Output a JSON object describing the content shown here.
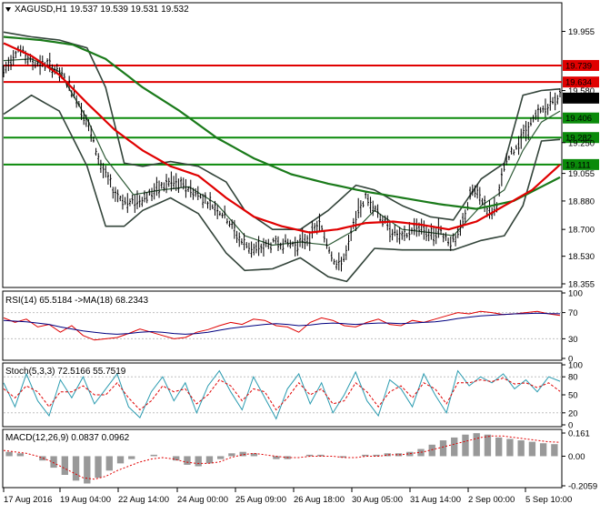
{
  "main_header": {
    "symbol_timeframe": "XAGUSD,H1",
    "ohlc": "19.537 19.539 19.531 19.532"
  },
  "rsi_header": "RSI(14) 65.5184 ->MA(18) 68.2343",
  "stoch_header": "Stoch(5,3,3) 72.5166 55.7519",
  "macd_header": "MACD(12,26,9) 0.0837 0.0962",
  "colors": {
    "candles": "#000000",
    "sma_red": "#e00000",
    "sma_green": "#1a7a1a",
    "bollinger": "#33443a",
    "fast_ma": "#2e5a36",
    "hline_red": "#e00000",
    "hline_green": "#0a8a0a",
    "rsi_line": "#e00000",
    "rsi_ma": "#000080",
    "stoch_main": "#2a9bb0",
    "stoch_signal": "#e00000",
    "macd_hist": "#999999",
    "macd_signal": "#e00000",
    "price_tag_bg": "#000000"
  },
  "chart_data": [
    {
      "type": "candlestick",
      "title": "XAGUSD,H1",
      "ylim": [
        18.355,
        20.05
      ],
      "price_ticks": [
        "19.955",
        "19.580",
        "19.250",
        "19.055",
        "18.880",
        "18.700",
        "18.530",
        "18.355"
      ],
      "x_tick_labels": [
        "17 Aug 2016",
        "19 Aug 04:00",
        "22 Aug 14:00",
        "24 Aug 00:00",
        "25 Aug 09:00",
        "26 Aug 18:00",
        "30 Aug 05:00",
        "31 Aug 14:00",
        "2 Sep 00:00",
        "5 Sep 10:00"
      ],
      "horizontal_levels": [
        {
          "value": 19.739,
          "label": "19.739",
          "color": "red"
        },
        {
          "value": 19.634,
          "label": "19.634",
          "color": "red"
        },
        {
          "value": 19.406,
          "label": "19.406",
          "color": "green"
        },
        {
          "value": 19.282,
          "label": "19.282",
          "color": "green"
        },
        {
          "value": 19.111,
          "label": "19.111",
          "color": "green"
        }
      ],
      "current_price": {
        "value": 19.532,
        "label": "19.532"
      },
      "price_path": [
        [
          0,
          19.7
        ],
        [
          3,
          19.85
        ],
        [
          6,
          19.76
        ],
        [
          10,
          19.74
        ],
        [
          13,
          19.66
        ],
        [
          16,
          19.52
        ],
        [
          18,
          19.38
        ],
        [
          21,
          19.1
        ],
        [
          24,
          18.93
        ],
        [
          27,
          18.86
        ],
        [
          30,
          18.9
        ],
        [
          33,
          18.95
        ],
        [
          36,
          19.0
        ],
        [
          40,
          18.96
        ],
        [
          44,
          18.88
        ],
        [
          48,
          18.78
        ],
        [
          51,
          18.63
        ],
        [
          54,
          18.57
        ],
        [
          57,
          18.6
        ],
        [
          60,
          18.62
        ],
        [
          63,
          18.6
        ],
        [
          66,
          18.65
        ],
        [
          68,
          18.74
        ],
        [
          70,
          18.6
        ],
        [
          72,
          18.46
        ],
        [
          74,
          18.55
        ],
        [
          76,
          18.78
        ],
        [
          78,
          18.9
        ],
        [
          80,
          18.85
        ],
        [
          82,
          18.75
        ],
        [
          84,
          18.68
        ],
        [
          86,
          18.64
        ],
        [
          88,
          18.7
        ],
        [
          90,
          18.72
        ],
        [
          92,
          18.66
        ],
        [
          94,
          18.7
        ],
        [
          96,
          18.63
        ],
        [
          97.5,
          18.62
        ],
        [
          99,
          18.74
        ],
        [
          101,
          18.95
        ],
        [
          103,
          18.9
        ],
        [
          105,
          18.8
        ],
        [
          106.5,
          18.87
        ],
        [
          108,
          19.1
        ],
        [
          110,
          19.2
        ],
        [
          112,
          19.3
        ],
        [
          114,
          19.38
        ],
        [
          116,
          19.45
        ],
        [
          118,
          19.5
        ],
        [
          120,
          19.55
        ]
      ],
      "sma_red_path": [
        [
          0,
          19.88
        ],
        [
          6,
          19.8
        ],
        [
          12,
          19.68
        ],
        [
          18,
          19.5
        ],
        [
          24,
          19.33
        ],
        [
          30,
          19.2
        ],
        [
          36,
          19.1
        ],
        [
          42,
          19.04
        ],
        [
          48,
          18.9
        ],
        [
          54,
          18.78
        ],
        [
          60,
          18.72
        ],
        [
          66,
          18.68
        ],
        [
          72,
          18.7
        ],
        [
          78,
          18.74
        ],
        [
          84,
          18.75
        ],
        [
          90,
          18.73
        ],
        [
          96,
          18.7
        ],
        [
          102,
          18.75
        ],
        [
          108,
          18.85
        ],
        [
          114,
          18.95
        ],
        [
          120,
          19.11
        ]
      ],
      "sma_green_path": [
        [
          0,
          19.92
        ],
        [
          8,
          19.9
        ],
        [
          15,
          19.87
        ],
        [
          22,
          19.78
        ],
        [
          30,
          19.6
        ],
        [
          38,
          19.45
        ],
        [
          46,
          19.28
        ],
        [
          54,
          19.15
        ],
        [
          62,
          19.05
        ],
        [
          70,
          18.99
        ],
        [
          78,
          18.94
        ],
        [
          86,
          18.9
        ],
        [
          94,
          18.86
        ],
        [
          102,
          18.83
        ],
        [
          110,
          18.88
        ],
        [
          116,
          18.97
        ],
        [
          120,
          19.03
        ]
      ],
      "bb_upper_path": [
        [
          0,
          19.95
        ],
        [
          6,
          19.92
        ],
        [
          12,
          19.9
        ],
        [
          18,
          19.85
        ],
        [
          22,
          19.6
        ],
        [
          26,
          19.12
        ],
        [
          30,
          19.1
        ],
        [
          36,
          19.13
        ],
        [
          42,
          19.1
        ],
        [
          48,
          19.0
        ],
        [
          52,
          18.82
        ],
        [
          58,
          18.7
        ],
        [
          64,
          18.7
        ],
        [
          70,
          18.82
        ],
        [
          76,
          18.98
        ],
        [
          80,
          18.95
        ],
        [
          86,
          18.85
        ],
        [
          92,
          18.78
        ],
        [
          97,
          18.76
        ],
        [
          103,
          19.02
        ],
        [
          108,
          19.12
        ],
        [
          112,
          19.55
        ],
        [
          116,
          19.58
        ],
        [
          120,
          19.59
        ]
      ],
      "bb_lower_path": [
        [
          0,
          19.43
        ],
        [
          6,
          19.55
        ],
        [
          12,
          19.45
        ],
        [
          18,
          19.1
        ],
        [
          22,
          18.72
        ],
        [
          26,
          18.72
        ],
        [
          30,
          18.82
        ],
        [
          36,
          18.9
        ],
        [
          42,
          18.8
        ],
        [
          48,
          18.55
        ],
        [
          52,
          18.44
        ],
        [
          58,
          18.45
        ],
        [
          64,
          18.52
        ],
        [
          70,
          18.4
        ],
        [
          74,
          18.37
        ],
        [
          80,
          18.58
        ],
        [
          86,
          18.57
        ],
        [
          92,
          18.57
        ],
        [
          97,
          18.57
        ],
        [
          103,
          18.63
        ],
        [
          108,
          18.66
        ],
        [
          112,
          18.85
        ],
        [
          116,
          19.26
        ],
        [
          120,
          19.27
        ]
      ],
      "fast_ma_path": [
        [
          0,
          19.77
        ],
        [
          6,
          19.78
        ],
        [
          12,
          19.7
        ],
        [
          18,
          19.4
        ],
        [
          22,
          19.15
        ],
        [
          28,
          18.92
        ],
        [
          34,
          18.95
        ],
        [
          40,
          18.97
        ],
        [
          46,
          18.86
        ],
        [
          52,
          18.66
        ],
        [
          58,
          18.6
        ],
        [
          64,
          18.62
        ],
        [
          70,
          18.6
        ],
        [
          76,
          18.7
        ],
        [
          80,
          18.82
        ],
        [
          86,
          18.7
        ],
        [
          92,
          18.68
        ],
        [
          97,
          18.66
        ],
        [
          103,
          18.85
        ],
        [
          108,
          18.95
        ],
        [
          112,
          19.2
        ],
        [
          116,
          19.38
        ],
        [
          120,
          19.45
        ]
      ]
    },
    {
      "type": "line",
      "title": "RSI(14) 65.5184 ->MA(18) 68.2343",
      "ylim": [
        0,
        100
      ],
      "y_ticks": [
        "100",
        "70",
        "30",
        "0"
      ],
      "series": [
        {
          "name": "RSI(14)",
          "values": [
            62,
            55,
            60,
            48,
            52,
            40,
            50,
            35,
            28,
            30,
            32,
            38,
            45,
            40,
            35,
            30,
            32,
            40,
            44,
            50,
            55,
            52,
            60,
            58,
            50,
            48,
            40,
            55,
            62,
            58,
            50,
            48,
            55,
            60,
            52,
            50,
            58,
            55,
            60,
            65,
            70,
            68,
            72,
            70,
            67,
            68,
            70,
            72,
            68,
            65.5
          ]
        },
        {
          "name": "MA(18)",
          "values": [
            58,
            57,
            56,
            54,
            52,
            48,
            45,
            42,
            40,
            38,
            37,
            38,
            40,
            41,
            40,
            38,
            37,
            38,
            40,
            43,
            46,
            48,
            50,
            52,
            53,
            52,
            50,
            51,
            53,
            54,
            53,
            52,
            53,
            54,
            54,
            53,
            54,
            55,
            56,
            58,
            61,
            63,
            65,
            66,
            67,
            68,
            68.5,
            69,
            68.5,
            68.2
          ]
        }
      ]
    },
    {
      "type": "line",
      "title": "Stoch(5,3,3) 72.5166 55.7519",
      "ylim": [
        0,
        100
      ],
      "y_ticks": [
        "100",
        "80",
        "50",
        "20",
        "0"
      ],
      "series": [
        {
          "name": "Stoch main",
          "values": [
            70,
            30,
            85,
            40,
            15,
            75,
            45,
            80,
            35,
            60,
            85,
            30,
            12,
            55,
            80,
            40,
            70,
            20,
            65,
            90,
            55,
            25,
            80,
            45,
            10,
            60,
            85,
            35,
            70,
            20,
            50,
            88,
            40,
            15,
            75,
            60,
            30,
            85,
            50,
            20,
            90,
            65,
            80,
            70,
            85,
            60,
            75,
            55,
            80,
            72.5
          ]
        },
        {
          "name": "Stoch signal",
          "values": [
            60,
            45,
            65,
            55,
            30,
            55,
            55,
            65,
            50,
            50,
            70,
            45,
            25,
            40,
            65,
            55,
            60,
            35,
            50,
            75,
            65,
            40,
            60,
            55,
            25,
            45,
            70,
            50,
            60,
            35,
            40,
            70,
            55,
            30,
            55,
            65,
            45,
            70,
            60,
            35,
            70,
            70,
            75,
            72,
            78,
            68,
            70,
            62,
            70,
            55.75
          ]
        }
      ]
    },
    {
      "type": "bar",
      "title": "MACD(12,26,9) 0.0837 0.0962",
      "ylim": [
        -0.2059,
        0.161
      ],
      "y_ticks": [
        "0.161",
        "0.00",
        "-0.2059"
      ],
      "series": [
        {
          "name": "MACD",
          "values": [
            0.03,
            0.02,
            0.0,
            -0.03,
            -0.08,
            -0.13,
            -0.17,
            -0.19,
            -0.15,
            -0.1,
            -0.05,
            -0.02,
            0.0,
            0.01,
            0.0,
            -0.03,
            -0.06,
            -0.07,
            -0.05,
            -0.02,
            0.02,
            0.03,
            0.02,
            0.0,
            -0.02,
            -0.02,
            0.0,
            0.01,
            0.01,
            0.0,
            -0.01,
            0.0,
            0.01,
            0.01,
            0.02,
            0.02,
            0.03,
            0.05,
            0.08,
            0.11,
            0.13,
            0.15,
            0.16,
            0.15,
            0.13,
            0.12,
            0.11,
            0.1,
            0.09,
            0.0837
          ]
        },
        {
          "name": "Signal",
          "values": [
            0.04,
            0.03,
            0.02,
            0.0,
            -0.03,
            -0.07,
            -0.11,
            -0.15,
            -0.16,
            -0.14,
            -0.1,
            -0.07,
            -0.04,
            -0.02,
            -0.01,
            -0.02,
            -0.04,
            -0.05,
            -0.05,
            -0.04,
            -0.01,
            0.01,
            0.02,
            0.01,
            0.0,
            -0.01,
            -0.01,
            0.0,
            0.0,
            0.0,
            -0.01,
            -0.01,
            0.0,
            0.0,
            0.01,
            0.01,
            0.02,
            0.03,
            0.05,
            0.07,
            0.09,
            0.11,
            0.13,
            0.14,
            0.14,
            0.13,
            0.12,
            0.11,
            0.1,
            0.0962
          ]
        }
      ]
    }
  ]
}
